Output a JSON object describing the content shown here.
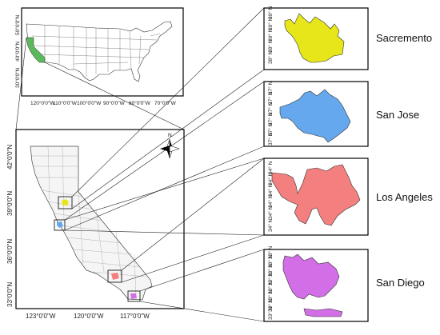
{
  "us_map": {
    "x_ticks": [
      "120°0'0\"W",
      "110°0'0\"W",
      "100°0'0\"W",
      "90°0'0\"W",
      "80°0'0\"W",
      "70°0'0\"W"
    ],
    "y_ticks": [
      "50°0'0\"N",
      "40°0'0\"N",
      "30°0'0\"N"
    ],
    "highlight_color": "#5cb85c"
  },
  "ca_map": {
    "x_ticks": [
      "123°0'0\"W",
      "120°0'0\"W",
      "117°0'0\"W"
    ],
    "y_ticks": [
      "42°0'0\"N",
      "39°0'0\"N",
      "36°0'0\"N",
      "33°0'0\"N"
    ],
    "north_label": "N"
  },
  "cities": [
    {
      "name": "Sacremento",
      "color": "#e6e61a",
      "ticks": [
        "39° N",
        "39° N",
        "39° N",
        "38° N",
        "38° N"
      ]
    },
    {
      "name": "San Jose",
      "color": "#66a8ee",
      "ticks": [
        "37° N",
        "37° N",
        "37° N",
        "37° N",
        "37° N",
        "37° N"
      ]
    },
    {
      "name": "Los Angeles",
      "color": "#f37f7f",
      "ticks": [
        "34° N",
        "34° N",
        "34° N",
        "34° N",
        "34° N",
        "34° N"
      ]
    },
    {
      "name": "San Diego",
      "color": "#d26ee6",
      "ticks": [
        "33° N",
        "33° N",
        "33° N",
        "33° N",
        "33° N",
        "33° N",
        "33° N",
        "33° N"
      ]
    }
  ]
}
